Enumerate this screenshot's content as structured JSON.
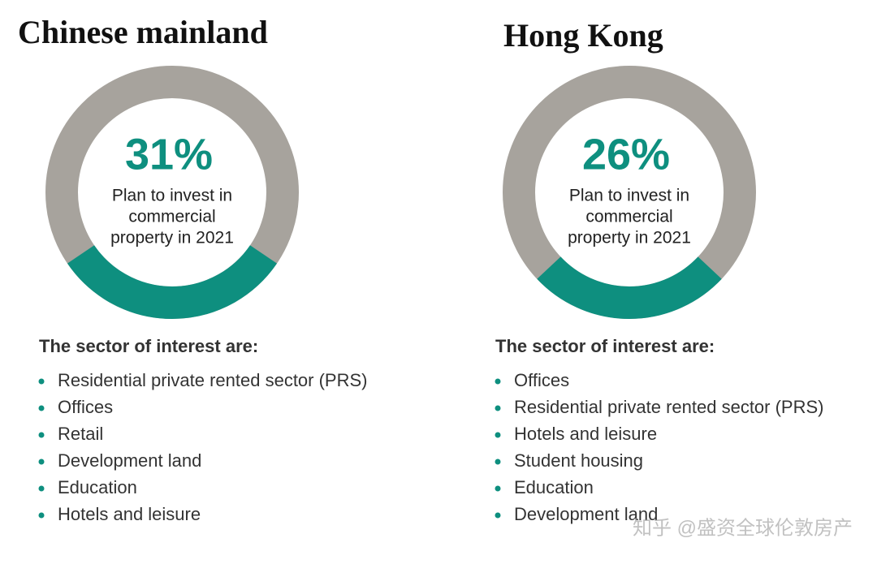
{
  "chart_data": [
    {
      "type": "donut",
      "title": "Chinese mainland",
      "values": [
        31
      ],
      "value_labels": [
        "31%"
      ],
      "color": "#0e8f7f",
      "track_color": "#a7a39d",
      "caption": [
        "Plan to invest in",
        "commercial",
        "property in 2021"
      ],
      "list_title": "The sector of interest are:",
      "items": [
        "Residential private rented sector (PRS)",
        "Offices",
        "Retail",
        "Development land",
        "Education",
        "Hotels and leisure"
      ]
    },
    {
      "type": "donut",
      "title": "Hong Kong",
      "values": [
        26
      ],
      "value_labels": [
        "26%"
      ],
      "color": "#0e8f7f",
      "track_color": "#a7a39d",
      "caption": [
        "Plan to invest in",
        "commercial",
        "property in 2021"
      ],
      "list_title": "The sector of interest are:",
      "items": [
        "Offices",
        "Residential private rented sector (PRS)",
        "Hotels and leisure",
        "Student housing",
        "Education",
        "Development land"
      ]
    }
  ],
  "watermark": "知乎 @盛资全球伦敦房产"
}
